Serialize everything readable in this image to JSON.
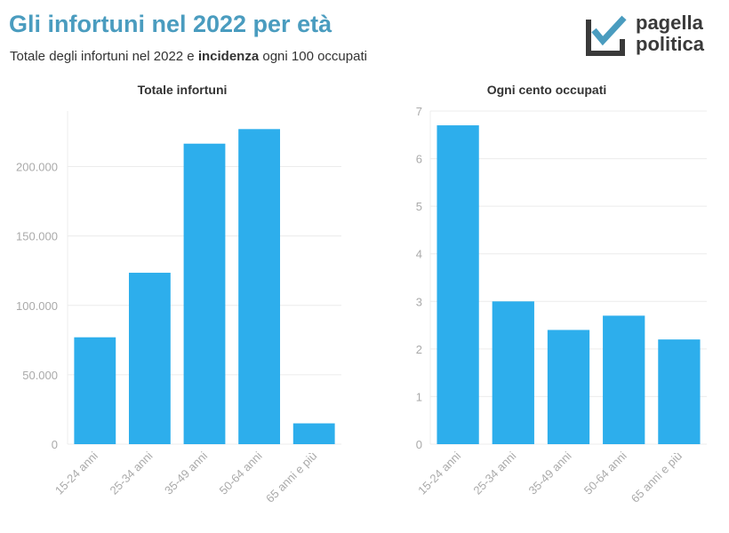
{
  "title": "Gli infortuni nel 2022 per età",
  "subtitle": {
    "part1": "Totale degli infortuni nel 2022 e ",
    "bold": "incidenza",
    "part2": " ogni 100 occupati"
  },
  "logo": {
    "line1": "pagella",
    "line2": "politica"
  },
  "colors": {
    "bar": "#2daeec",
    "title": "#4a9cbf",
    "grid": "#ececec",
    "tick": "#aaaaaa"
  },
  "chart_data": [
    {
      "type": "bar",
      "title": "Totale infortuni",
      "categories": [
        "15-24 anni",
        "25-34 anni",
        "35-49 anni",
        "50-64 anni",
        "65 anni e più"
      ],
      "values": [
        77000,
        123500,
        216500,
        227000,
        15000
      ],
      "ylim": [
        0,
        240000
      ],
      "yticks": [
        0,
        50000,
        100000,
        150000,
        200000
      ],
      "ytick_labels": [
        "0",
        "50.000",
        "100.000",
        "150.000",
        "200.000"
      ],
      "grid": true
    },
    {
      "type": "bar",
      "title": "Ogni cento occupati",
      "categories": [
        "15-24 anni",
        "25-34 anni",
        "35-49 anni",
        "50-64 anni",
        "65 anni e più"
      ],
      "values": [
        6.7,
        3.0,
        2.4,
        2.7,
        2.2
      ],
      "ylim": [
        0,
        7
      ],
      "yticks": [
        0,
        1,
        2,
        3,
        4,
        5,
        6,
        7
      ],
      "ytick_labels": [
        "0",
        "1",
        "2",
        "3",
        "4",
        "5",
        "6",
        "7"
      ],
      "grid": true
    }
  ]
}
